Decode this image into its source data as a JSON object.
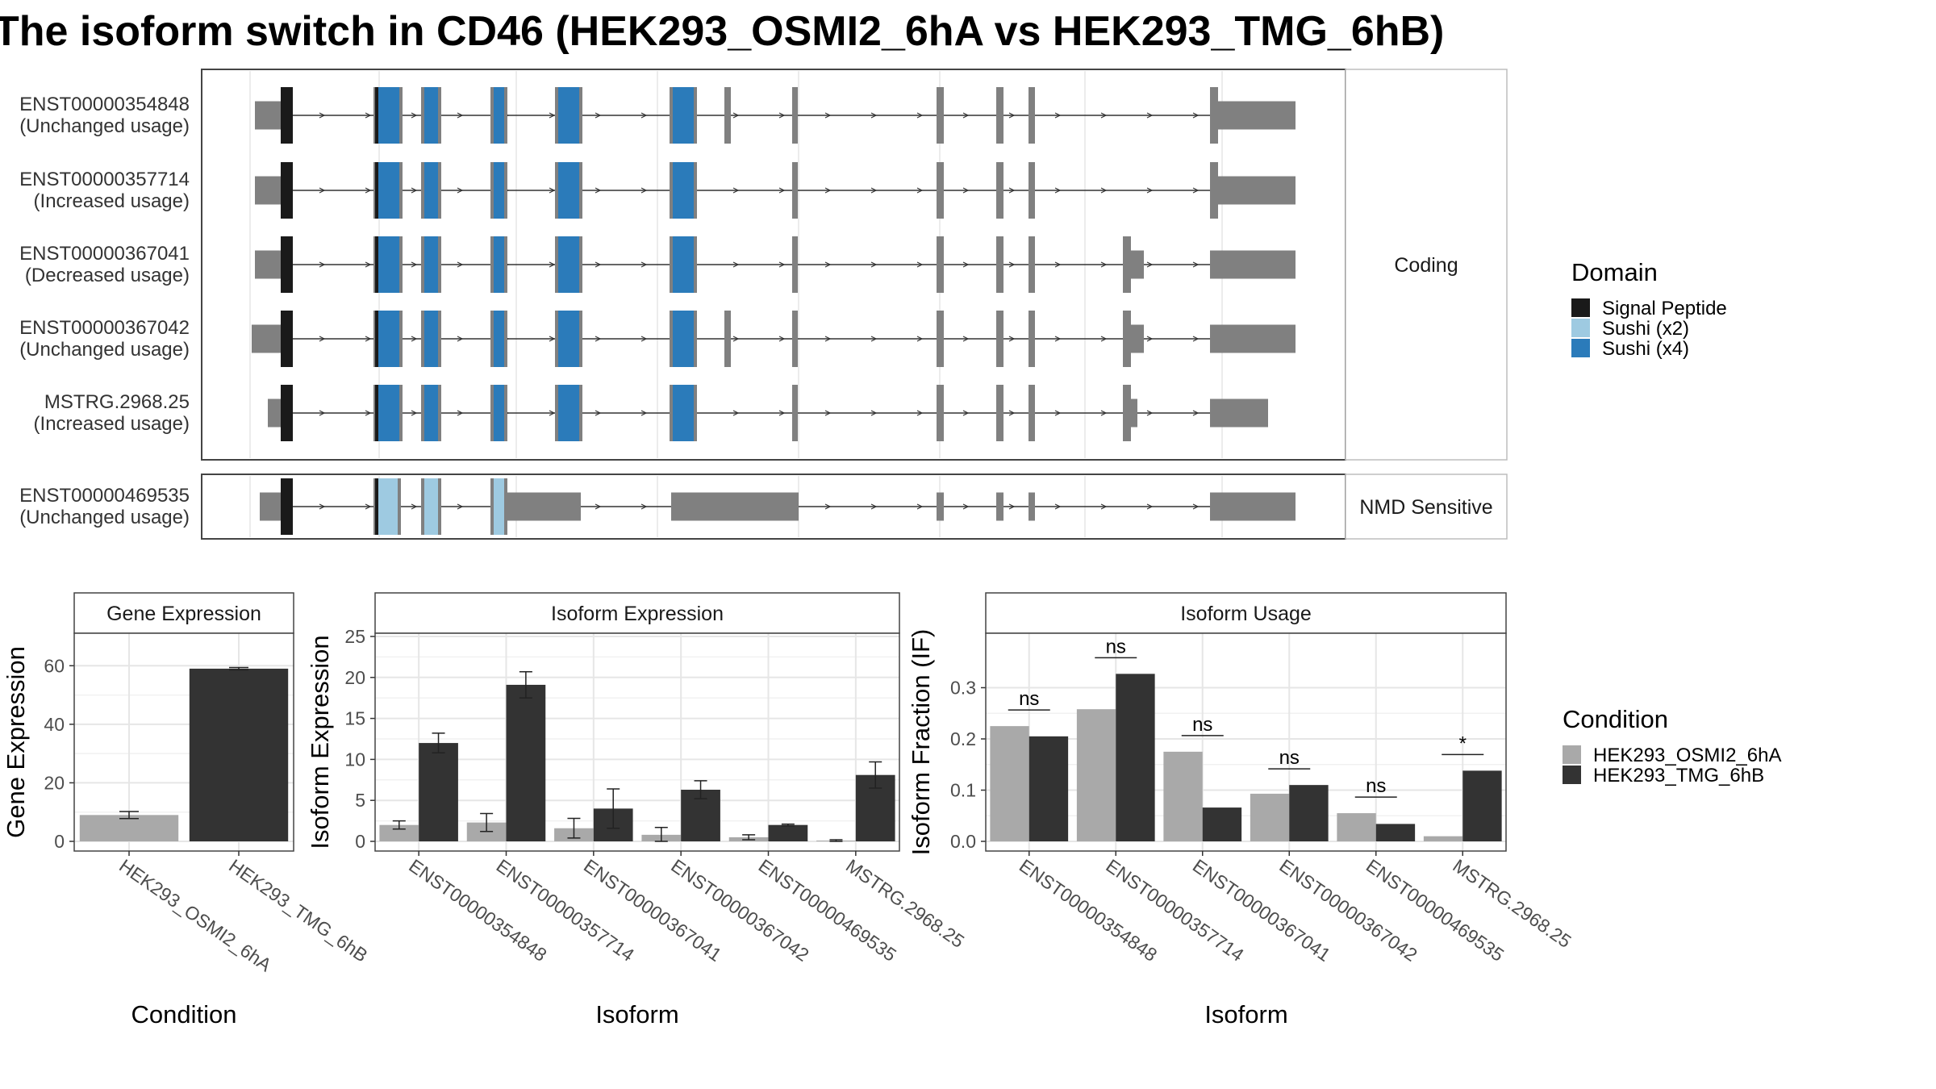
{
  "title": "The isoform switch in CD46 (HEK293_OSMI2_6hA vs HEK293_TMG_6hB)",
  "colors": {
    "signal_peptide": "#1a1a1a",
    "sushi_x2": "#9ecae1",
    "sushi_x4": "#2b7bba",
    "exon": "#808080",
    "cond1": "#a9a9a9",
    "cond2": "#333333",
    "panel_border": "#444444",
    "grid": "#e6e6e6"
  },
  "structure": {
    "coding_label": "Coding",
    "nmd_label": "NMD Sensitive",
    "transcripts": [
      {
        "id": "ENST00000354848",
        "usage": "(Unchanged usage)",
        "group": "coding"
      },
      {
        "id": "ENST00000357714",
        "usage": "(Increased usage)",
        "group": "coding"
      },
      {
        "id": "ENST00000367041",
        "usage": "(Decreased usage)",
        "group": "coding"
      },
      {
        "id": "ENST00000367042",
        "usage": "(Unchanged usage)",
        "group": "coding"
      },
      {
        "id": "MSTRG.2968.25",
        "usage": "(Increased usage)",
        "group": "coding"
      },
      {
        "id": "ENST00000469535",
        "usage": "(Unchanged usage)",
        "group": "nmd"
      }
    ]
  },
  "legend_domain": {
    "title": "Domain",
    "items": [
      {
        "label": "Signal Peptide",
        "color": "#1a1a1a"
      },
      {
        "label": "Sushi (x2)",
        "color": "#9ecae1"
      },
      {
        "label": "Sushi (x4)",
        "color": "#2b7bba"
      }
    ]
  },
  "legend_condition": {
    "title": "Condition",
    "items": [
      {
        "label": "HEK293_OSMI2_6hA",
        "color": "#a9a9a9"
      },
      {
        "label": "HEK293_TMG_6hB",
        "color": "#333333"
      }
    ]
  },
  "chart_data": [
    {
      "type": "bar",
      "title": "Gene Expression",
      "xlabel": "Condition",
      "ylabel": "Gene Expression",
      "ylim": [
        0,
        70
      ],
      "yticks": [
        0,
        20,
        40,
        60
      ],
      "categories": [
        "HEK293_OSMI2_6hA",
        "HEK293_TMG_6hB"
      ],
      "values": [
        9.0,
        59.0
      ],
      "errors": [
        1.2,
        0.4
      ]
    },
    {
      "type": "bar",
      "title": "Isoform Expression",
      "xlabel": "Isoform",
      "ylabel": "Isoform Expression",
      "ylim": [
        0,
        25
      ],
      "yticks": [
        0,
        5,
        10,
        15,
        20,
        25
      ],
      "categories": [
        "ENST00000354848",
        "ENST00000357714",
        "ENST00000367041",
        "ENST00000367042",
        "ENST00000469535",
        "MSTRG.2968.25"
      ],
      "series": [
        {
          "name": "HEK293_OSMI2_6hA",
          "values": [
            2.0,
            2.3,
            1.6,
            0.8,
            0.5,
            0.1
          ],
          "errors": [
            0.5,
            1.1,
            1.2,
            0.9,
            0.3,
            0.1
          ]
        },
        {
          "name": "HEK293_TMG_6hB",
          "values": [
            12.0,
            19.1,
            4.0,
            6.3,
            2.0,
            8.1
          ],
          "errors": [
            1.2,
            1.6,
            2.4,
            1.1,
            0.1,
            1.6
          ]
        }
      ]
    },
    {
      "type": "bar",
      "title": "Isoform Usage",
      "xlabel": "Isoform",
      "ylabel": "Isoform Fraction (IF)",
      "ylim": [
        0,
        0.4
      ],
      "yticks": [
        0.0,
        0.1,
        0.2,
        0.3
      ],
      "categories": [
        "ENST00000354848",
        "ENST00000357714",
        "ENST00000367041",
        "ENST00000367042",
        "ENST00000469535",
        "MSTRG.2968.25"
      ],
      "series": [
        {
          "name": "HEK293_OSMI2_6hA",
          "values": [
            0.225,
            0.258,
            0.175,
            0.093,
            0.055,
            0.01
          ]
        },
        {
          "name": "HEK293_TMG_6hB",
          "values": [
            0.205,
            0.327,
            0.066,
            0.11,
            0.034,
            0.138
          ]
        }
      ],
      "annotations": [
        "ns",
        "ns",
        "ns",
        "ns",
        "ns",
        "*"
      ]
    }
  ]
}
